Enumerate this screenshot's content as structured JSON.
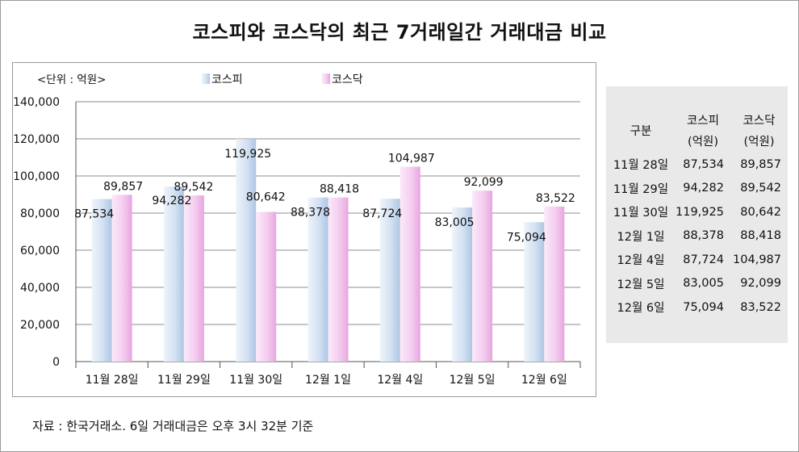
{
  "title": "코스피와 코스닥의 최근 7거래일간 거래대금 비교",
  "chart_data": {
    "type": "bar",
    "unit_label": "<단위 : 억원>",
    "categories": [
      "11월 28일",
      "11월 29일",
      "11월 30일",
      "12월 1일",
      "12월 4일",
      "12월 5일",
      "12월 6일"
    ],
    "series": [
      {
        "name": "코스피",
        "values": [
          87534,
          94282,
          119925,
          88378,
          87724,
          83005,
          75094
        ],
        "color": "#c9d9ee"
      },
      {
        "name": "코스닥",
        "values": [
          89857,
          89542,
          80642,
          88418,
          104987,
          92099,
          83522
        ],
        "color": "#f2c7ee"
      }
    ],
    "ylim": [
      0,
      140000
    ],
    "yticks": [
      0,
      20000,
      40000,
      60000,
      80000,
      100000,
      120000,
      140000
    ],
    "ytick_labels": [
      "0",
      "20,000",
      "40,000",
      "60,000",
      "80,000",
      "100,000",
      "120,000",
      "140,000"
    ],
    "data_labels": [
      [
        "87,534",
        "94,282",
        "119,925",
        "88,378",
        "87,724",
        "83,005",
        "75,094"
      ],
      [
        "89,857",
        "89,542",
        "80,642",
        "88,418",
        "104,987",
        "92,099",
        "83,522"
      ]
    ],
    "grid": true,
    "legend": "top"
  },
  "table": {
    "header_col": "구분",
    "headers": [
      [
        "코스피",
        "(억원)"
      ],
      [
        "코스닥",
        "(억원)"
      ]
    ],
    "rows": [
      [
        "11월 28일",
        "87,534",
        "89,857"
      ],
      [
        "11월 29일",
        "94,282",
        "89,542"
      ],
      [
        "11월 30일",
        "119,925",
        "80,642"
      ],
      [
        "12월 1일",
        "88,378",
        "88,418"
      ],
      [
        "12월 4일",
        "87,724",
        "104,987"
      ],
      [
        "12월 5일",
        "83,005",
        "92,099"
      ],
      [
        "12월 6일",
        "75,094",
        "83,522"
      ]
    ]
  },
  "footnote": "자료 : 한국거래소. 6일 거래대금은 오후 3시 32분 기준"
}
